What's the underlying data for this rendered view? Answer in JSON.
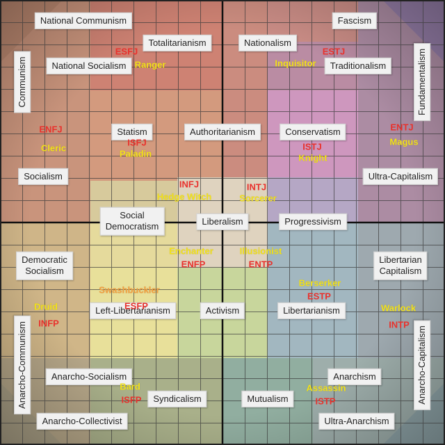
{
  "ideologies": {
    "national_communism": "National Communism",
    "fascism": "Fascism",
    "totalitarianism": "Totalitarianism",
    "nationalism": "Nationalism",
    "national_socialism": "National Socialism",
    "traditionalism": "Traditionalism",
    "communism": "Communism",
    "fundamentalism": "Fundamentalism",
    "statism": "Statism",
    "authoritarianism": "Authoritarianism",
    "conservatism": "Conservatism",
    "socialism": "Socialism",
    "ultra_capitalism": "Ultra-Capitalism",
    "social_democratism": "Social\nDemocratism",
    "liberalism": "Liberalism",
    "progressivism": "Progressivism",
    "democratic_socialism": "Democratic\nSocialism",
    "libertarian_capitalism": "Libertarian\nCapitalism",
    "left_libertarianism": "Left-Libertarianism",
    "activism": "Activism",
    "libertarianism": "Libertarianism",
    "anarcho_communism": "Anarcho-Communism",
    "anarcho_capitalism": "Anarcho-Capitalism",
    "anarcho_socialism": "Anarcho-Socialism",
    "anarchism": "Anarchism",
    "syndicalism": "Syndicalism",
    "mutualism": "Mutualism",
    "anarcho_collectivist": "Anarcho-Collectivist",
    "ultra_anarchism": "Ultra-Anarchism"
  },
  "types": {
    "esfj": "ESFJ",
    "estj": "ESTJ",
    "enfj": "ENFJ",
    "entj": "ENTJ",
    "isfj": "ISFJ",
    "istj": "ISTJ",
    "infj": "INFJ",
    "intj": "INTJ",
    "enfp": "ENFP",
    "entp": "ENTP",
    "esfp": "ESFP",
    "estp": "ESTP",
    "infp": "INFP",
    "intp": "INTP",
    "isfp": "ISFP",
    "istp": "ISTP"
  },
  "classes": {
    "ranger": "Ranger",
    "inquisitor": "Inquisitor",
    "cleric": "Cleric",
    "magus": "Magus",
    "paladin": "Paladin",
    "knight": "Knight",
    "hedge_witch": "Hedge Witch",
    "sorcerer": "Sorcerer",
    "enchanter": "Enchanter",
    "illusionist": "Illusionist",
    "swashbuckler": "Swashbuckler",
    "berserker": "Berserker",
    "druid": "Druid",
    "warlock": "Warlock",
    "bard": "Bard",
    "assassin": "Assassin"
  },
  "colors": {
    "background": "#c9a17e",
    "grid_line": "#3a3a3a",
    "axis_line": "#111111",
    "type_text": "#e8322d",
    "class_text": "#f3e21a",
    "class_text_orange": "#f4a040",
    "label_bg": "#f1f1f1"
  }
}
